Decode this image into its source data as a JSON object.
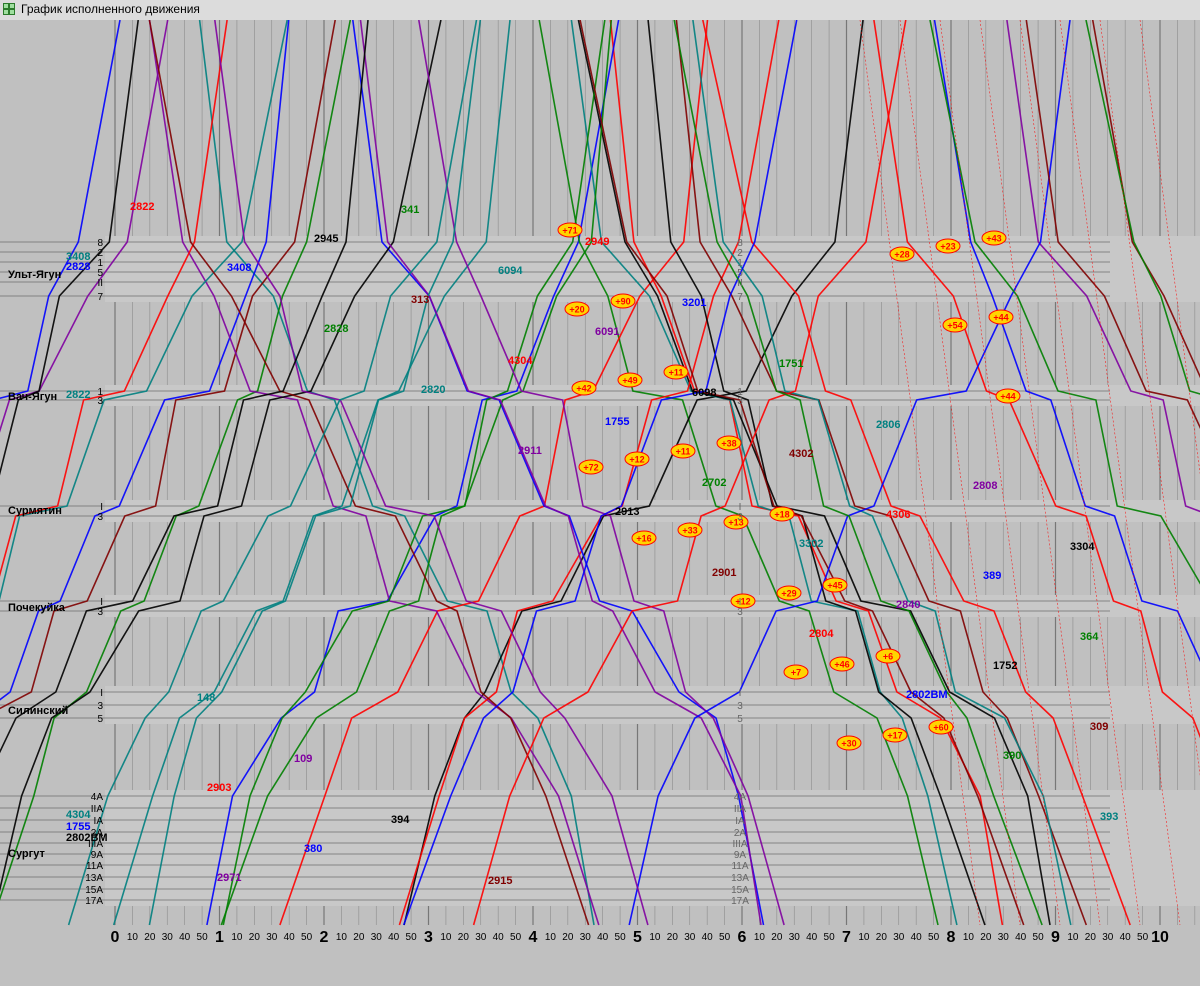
{
  "window": {
    "title": "График исполненного движения"
  },
  "stations": [
    {
      "name": "Ульт-Ягун",
      "tracks": [
        "8",
        "2",
        "1",
        "5",
        "II",
        "7"
      ],
      "train_labels": [
        "3408",
        "2828"
      ]
    },
    {
      "name": "Вач-Ягун",
      "tracks": [
        "1",
        "3"
      ],
      "train_labels": [
        "2822"
      ]
    },
    {
      "name": "Сурмятин",
      "tracks": [
        "I",
        "3"
      ],
      "train_labels": []
    },
    {
      "name": "Почекуйка",
      "tracks": [
        "I",
        "3"
      ],
      "train_labels": []
    },
    {
      "name": "Силинский",
      "tracks": [
        "I",
        "3",
        "5"
      ],
      "train_labels": []
    },
    {
      "name": "Сургут",
      "tracks": [
        "4А",
        "IIА",
        "IА",
        "2А",
        "IIIА",
        "9А",
        "11А",
        "13А",
        "15А",
        "17А"
      ],
      "train_labels": [
        "4304",
        "1755",
        "2802ВМ"
      ]
    }
  ],
  "time_axis": {
    "hours": [
      "0",
      "1",
      "2",
      "3",
      "4",
      "5",
      "6",
      "7",
      "8",
      "9",
      "10"
    ],
    "minutes": [
      "10",
      "20",
      "30",
      "40",
      "50"
    ]
  },
  "trains": {
    "odd_lines": [
      "2822",
      "3408",
      "2828",
      "2820",
      "2911",
      "2913",
      "2901",
      "2804",
      "2802ВМ",
      "390",
      "393",
      "2971",
      "2945",
      "313",
      "4304",
      "1755",
      "2702",
      "3302",
      "2840",
      "1752"
    ],
    "even_lines": [
      "309",
      "2903",
      "380",
      "341",
      "6094",
      "6091",
      "6098",
      "4302",
      "4306",
      "389",
      "364",
      "148",
      "109",
      "394",
      "2915",
      "2949",
      "3201",
      "1751",
      "2806",
      "2808",
      "3304"
    ]
  },
  "delays": [
    "+71",
    "+90",
    "+11",
    "+38",
    "+18",
    "+45",
    "+6",
    "+60",
    "+43",
    "+20",
    "+49",
    "+11",
    "+13",
    "+29",
    "+46",
    "+17",
    "+23",
    "+44",
    "+42",
    "+12",
    "+33",
    "+12",
    "+7",
    "+30",
    "+28",
    "+54",
    "+44",
    "+72",
    "+16"
  ],
  "colors": {
    "background": "#c0c0c0",
    "grid": "#8c8c8c",
    "red": "#ff0000",
    "blue": "#0000ff",
    "green": "#008000",
    "teal": "#008080",
    "purple": "#8000a0",
    "black": "#000000",
    "maroon": "#800000",
    "delay_badge": "#ffd400"
  }
}
